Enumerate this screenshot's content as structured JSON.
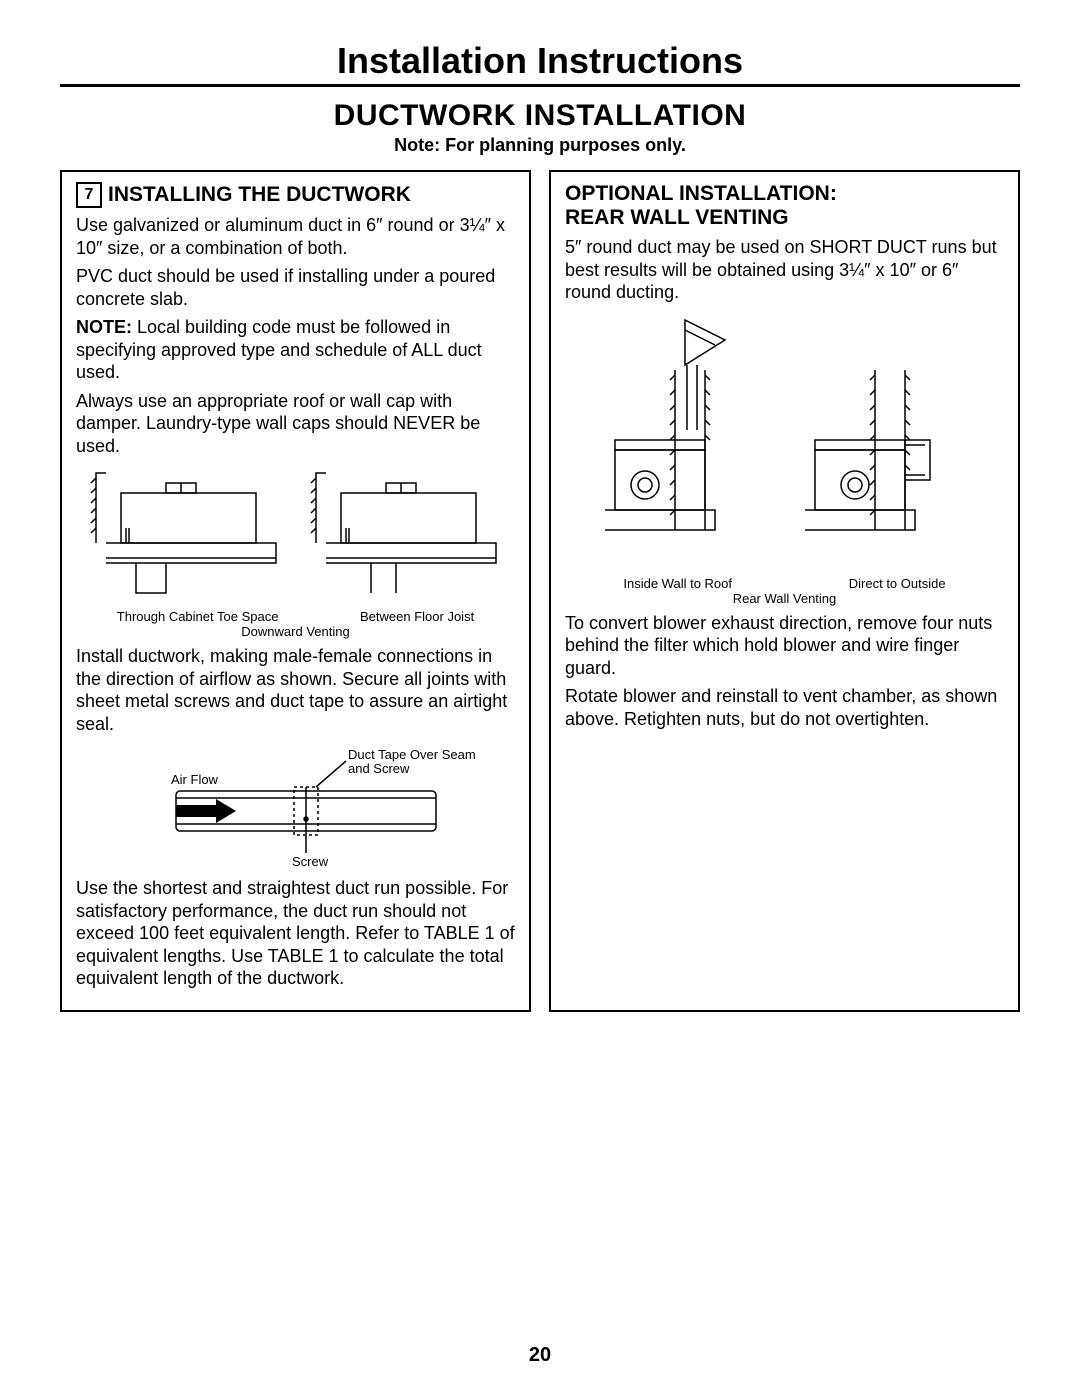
{
  "header": {
    "main_title": "Installation Instructions",
    "section_title": "DUCTWORK INSTALLATION",
    "note": "Note: For planning purposes only."
  },
  "left": {
    "step_number": "7",
    "heading": "INSTALLING THE DUCTWORK",
    "p1": "Use galvanized or aluminum duct in 6″ round or 3¼″ x 10″ size, or a combination of both.",
    "p2": "PVC duct should be used if installing under a poured concrete slab.",
    "p3_prefix": "NOTE:",
    "p3_rest": " Local building code must be followed in specifying approved type and schedule of ALL duct used.",
    "p4": "Always use an appropriate roof or wall cap with damper. Laundry-type wall caps should NEVER be used.",
    "fig1": {
      "label_left": "Through Cabinet Toe Space",
      "label_right": "Between Floor Joist",
      "caption": "Downward Venting"
    },
    "p5": "Install ductwork, making male-female connections in the direction of airflow as shown. Secure all joints with sheet metal screws and duct tape to assure an airtight seal.",
    "fig2": {
      "airflow": "Air Flow",
      "tape": "Duct Tape Over Seam and Screw",
      "screw": "Screw"
    },
    "p6": "Use the shortest and straightest duct run possible. For satisfactory performance, the duct run should not exceed 100 feet equivalent length. Refer to TABLE 1 of equivalent lengths. Use TABLE 1 to calculate the total equivalent length of the ductwork."
  },
  "right": {
    "heading_l1": "OPTIONAL INSTALLATION:",
    "heading_l2": "REAR WALL VENTING",
    "p1": "5″ round duct may be used on SHORT DUCT runs but best results will be obtained using 3¼″ x 10″ or 6″ round ducting.",
    "fig": {
      "label_left": "Inside Wall to Roof",
      "label_right": "Direct to Outside",
      "caption": "Rear Wall Venting"
    },
    "p2": "To convert blower exhaust direction, remove four nuts behind the filter which hold blower and wire finger guard.",
    "p3": "Rotate blower and reinstall to vent chamber, as shown above. Retighten nuts, but do not overtighten."
  },
  "page_number": "20"
}
